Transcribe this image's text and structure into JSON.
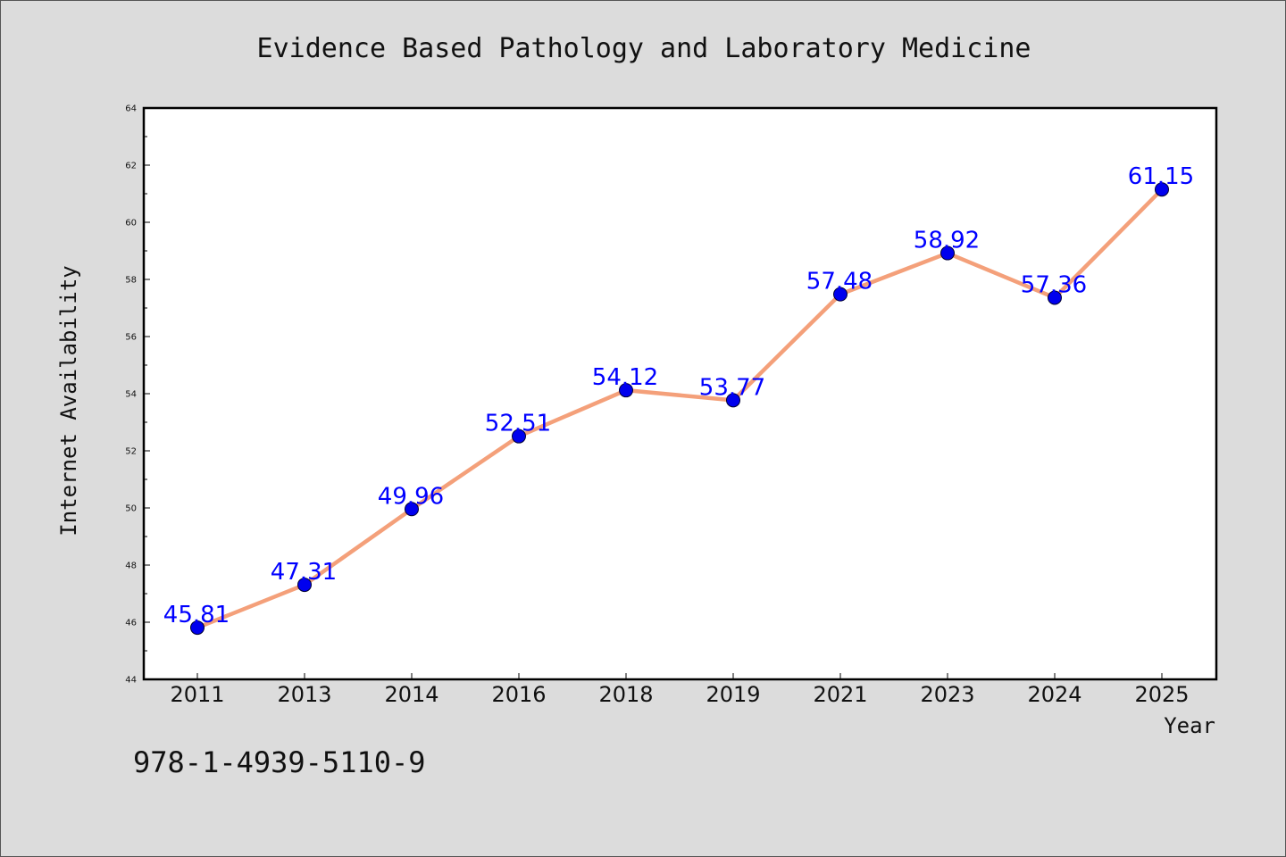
{
  "chart_data": {
    "type": "line",
    "title": "Evidence Based Pathology and Laboratory Medicine",
    "xlabel": "Year",
    "ylabel": "Internet Availability",
    "categories": [
      "2011",
      "2013",
      "2014",
      "2016",
      "2018",
      "2019",
      "2021",
      "2023",
      "2024",
      "2025"
    ],
    "series": [
      {
        "values": [
          45.81,
          47.31,
          49.96,
          52.51,
          54.12,
          53.77,
          57.48,
          58.92,
          57.36,
          61.15
        ],
        "labels": [
          "45.81",
          "47.31",
          "49.96",
          "52.51",
          "54.12",
          "53.77",
          "57.48",
          "58.92",
          "57.36",
          "61.15"
        ]
      }
    ],
    "ylim": [
      44,
      64
    ],
    "yticks": [
      "44",
      "46",
      "48",
      "50",
      "52",
      "54",
      "56",
      "58",
      "60",
      "62",
      "64"
    ],
    "grid": false,
    "line_color": "#f4a07a",
    "marker_color": "#0000ee",
    "label_color": "#0000ff"
  },
  "footer": {
    "text": "978-1-4939-5110-9"
  }
}
